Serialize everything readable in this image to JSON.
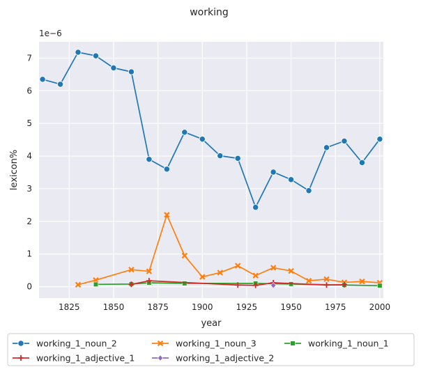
{
  "chart_data": {
    "type": "line",
    "title": "working",
    "xlabel": "year",
    "ylabel": "lexicon%",
    "y_scale_label": "1e−6",
    "xlim": [
      1808,
      2002
    ],
    "ylim": [
      -0.35,
      7.5
    ],
    "x_ticks": [
      1825,
      1850,
      1875,
      1900,
      1925,
      1950,
      1975,
      2000
    ],
    "y_ticks": [
      0,
      1,
      2,
      3,
      4,
      5,
      6,
      7
    ],
    "grid": true,
    "legend_position": "bottom",
    "series": [
      {
        "name": "working_1_noun_2",
        "color": "#1f77b4",
        "marker": "circle",
        "x": [
          1810,
          1820,
          1830,
          1840,
          1850,
          1860,
          1870,
          1880,
          1890,
          1900,
          1910,
          1920,
          1930,
          1940,
          1950,
          1960,
          1970,
          1980,
          1990,
          2000
        ],
        "y": [
          6.35,
          6.2,
          7.18,
          7.07,
          6.7,
          6.58,
          3.9,
          3.6,
          4.73,
          4.52,
          4.01,
          3.93,
          2.43,
          3.51,
          3.28,
          2.94,
          4.26,
          4.46,
          3.8,
          4.52
        ]
      },
      {
        "name": "working_1_noun_3",
        "color": "#ff7f0e",
        "marker": "x",
        "x": [
          1830,
          1840,
          1860,
          1870,
          1880,
          1890,
          1900,
          1910,
          1920,
          1930,
          1940,
          1950,
          1960,
          1970,
          1980,
          1990,
          2000
        ],
        "y": [
          0.06,
          0.2,
          0.52,
          0.47,
          2.2,
          0.95,
          0.3,
          0.43,
          0.64,
          0.34,
          0.58,
          0.48,
          0.18,
          0.23,
          0.13,
          0.16,
          0.12
        ]
      },
      {
        "name": "working_1_noun_1",
        "color": "#2ca02c",
        "marker": "square",
        "x": [
          1840,
          1860,
          1870,
          1890,
          1930,
          1950,
          1980,
          2000
        ],
        "y": [
          0.07,
          0.08,
          0.12,
          0.1,
          0.1,
          0.08,
          0.05,
          0.03
        ]
      },
      {
        "name": "working_1_adjective_1",
        "color": "#d62728",
        "marker": "plus",
        "x": [
          1860,
          1870,
          1920,
          1930,
          1940,
          1970,
          1980
        ],
        "y": [
          0.07,
          0.18,
          0.05,
          0.04,
          0.12,
          0.05,
          0.06
        ]
      },
      {
        "name": "working_1_adjective_2",
        "color": "#9467bd",
        "marker": "diamond",
        "x": [
          1940
        ],
        "y": [
          0.04
        ]
      }
    ]
  }
}
